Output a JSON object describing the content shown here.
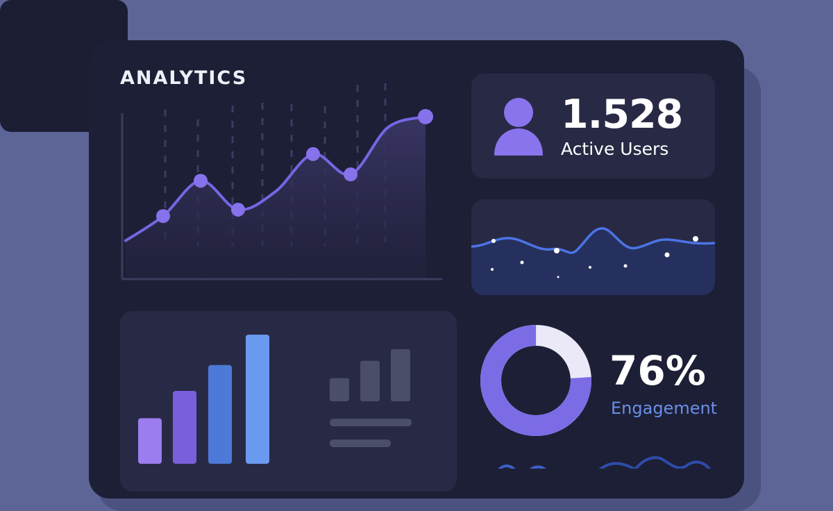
{
  "header": {
    "title": "ANALYTICS"
  },
  "stats": {
    "active_users_value": "1.528",
    "active_users_label": "Active Users",
    "engagement_value": "76%",
    "engagement_label": "Engagement",
    "engagement_fraction": 0.76
  },
  "icons": [
    "user-icon",
    "donut-chart-icon"
  ],
  "colors": {
    "background": "#5d6496",
    "panel": "#1c1f36",
    "card": "#282a45",
    "accent_purple": "#7b6ce6",
    "accent_blue": "#6c8ee8"
  },
  "chart_data": [
    {
      "type": "line",
      "values": [
        1,
        3.3,
        6.6,
        3.9,
        5.6,
        9.1,
        7.2,
        11.6,
        12.6
      ],
      "markers_at": [
        1,
        2,
        3,
        5,
        6
      ],
      "fill": "area"
    },
    {
      "type": "bar",
      "values": [
        30,
        48,
        65,
        85
      ],
      "colors": [
        "#9b7df0",
        "#7a5fdc",
        "#4d7ad8",
        "#6a9af0"
      ]
    },
    {
      "type": "bar",
      "values": [
        2,
        3.5,
        4.5
      ]
    },
    {
      "type": "pie",
      "values": [
        76,
        24
      ],
      "colors": [
        "#7b6ce6",
        "#ebe9f7"
      ]
    }
  ]
}
